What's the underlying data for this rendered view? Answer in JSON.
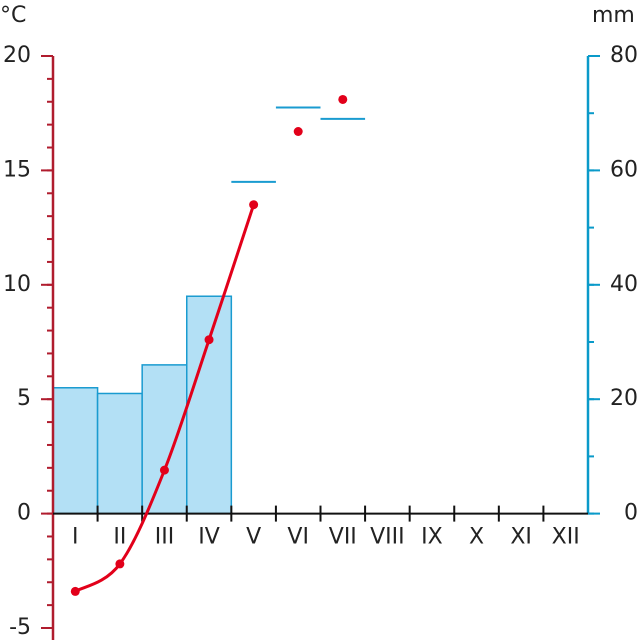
{
  "chart_data": {
    "type": "climate",
    "y_label": "°C",
    "y2_label": "mm",
    "categories": [
      "I",
      "II",
      "III",
      "IV",
      "V",
      "VI",
      "VII",
      "VIII",
      "IX",
      "X",
      "XI",
      "XII"
    ],
    "ylim": [
      -5,
      20
    ],
    "yticks": [
      -5,
      0,
      5,
      10,
      15,
      20
    ],
    "yminor_step": 1,
    "ycolor": "#b01c2e",
    "y2lim": [
      0,
      80
    ],
    "y2ticks": [
      0,
      20,
      40,
      60,
      80
    ],
    "y2minor_step": 10,
    "y2color": "#0a9ac9",
    "series": [
      {
        "type": "bar",
        "axis": "y2",
        "color": "#b3e0f5",
        "edgecolor": "#1a9bd0",
        "values": [
          22,
          21,
          26,
          38,
          null,
          null,
          null,
          null,
          null,
          null,
          null,
          null
        ]
      },
      {
        "type": "level",
        "axis": "y2",
        "color": "#1a9bd0",
        "values": [
          null,
          null,
          null,
          null,
          58,
          71,
          69,
          null,
          null,
          null,
          null,
          null
        ]
      },
      {
        "type": "line",
        "color": "#e2001a",
        "smooth": true,
        "values": [
          -3.4,
          -2.2,
          1.9,
          7.6,
          13.5,
          null,
          null,
          null,
          null,
          null,
          null,
          null
        ]
      },
      {
        "type": "points",
        "color": "#e2001a",
        "values": [
          null,
          null,
          null,
          null,
          null,
          16.7,
          18.1,
          null,
          null,
          null,
          null,
          null
        ]
      }
    ]
  }
}
